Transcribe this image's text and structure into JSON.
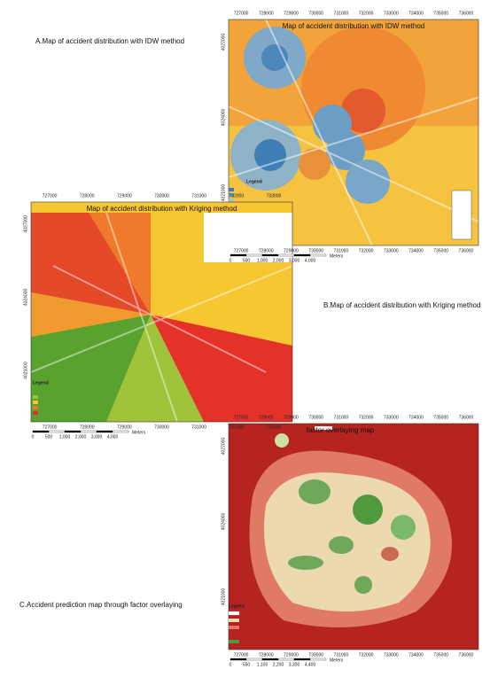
{
  "maps": [
    {
      "caption": "A.Map of accident distribution with IDW method",
      "title": "Map of accident distribution with IDW method",
      "x_labels": [
        "727000",
        "728000",
        "729000",
        "730000",
        "731000",
        "732000",
        "733000",
        "734000",
        "735000",
        "736000"
      ],
      "y_labels": [
        "4027000",
        "4024000",
        "4021000"
      ],
      "legend_title": "Legend",
      "scale_labels": [
        "0",
        "500",
        "1,000",
        "2,000",
        "3,000",
        "4,000"
      ],
      "scale_unit": "Meters"
    },
    {
      "caption": "B.Map of accident distribution with Kriging method",
      "title": "Map of accident distribution with Kriging method",
      "x_labels": [
        "727000",
        "728000",
        "729000",
        "730000",
        "731000",
        "732000",
        "733000"
      ],
      "y_labels": [
        "4027000",
        "4024000",
        "4021000"
      ],
      "legend_title": "Legend",
      "scale_labels": [
        "0",
        "500",
        "1,000",
        "2,000",
        "3,000",
        "4,000"
      ],
      "scale_unit": "Meters"
    },
    {
      "caption": "C.Accident prediction map through factor overlaying",
      "title": "factor overlaying map",
      "x_labels": [
        "727000",
        "728000",
        "729000",
        "730000",
        "731000",
        "732000",
        "733000",
        "734000",
        "735000",
        "736000"
      ],
      "y_labels": [
        "4027000",
        "4024000",
        "4021000"
      ],
      "legend_title": "Legend",
      "scale_labels": [
        "0",
        "550",
        "1,100",
        "2,200",
        "3,300",
        "4,400"
      ],
      "scale_unit": "Meters"
    }
  ]
}
